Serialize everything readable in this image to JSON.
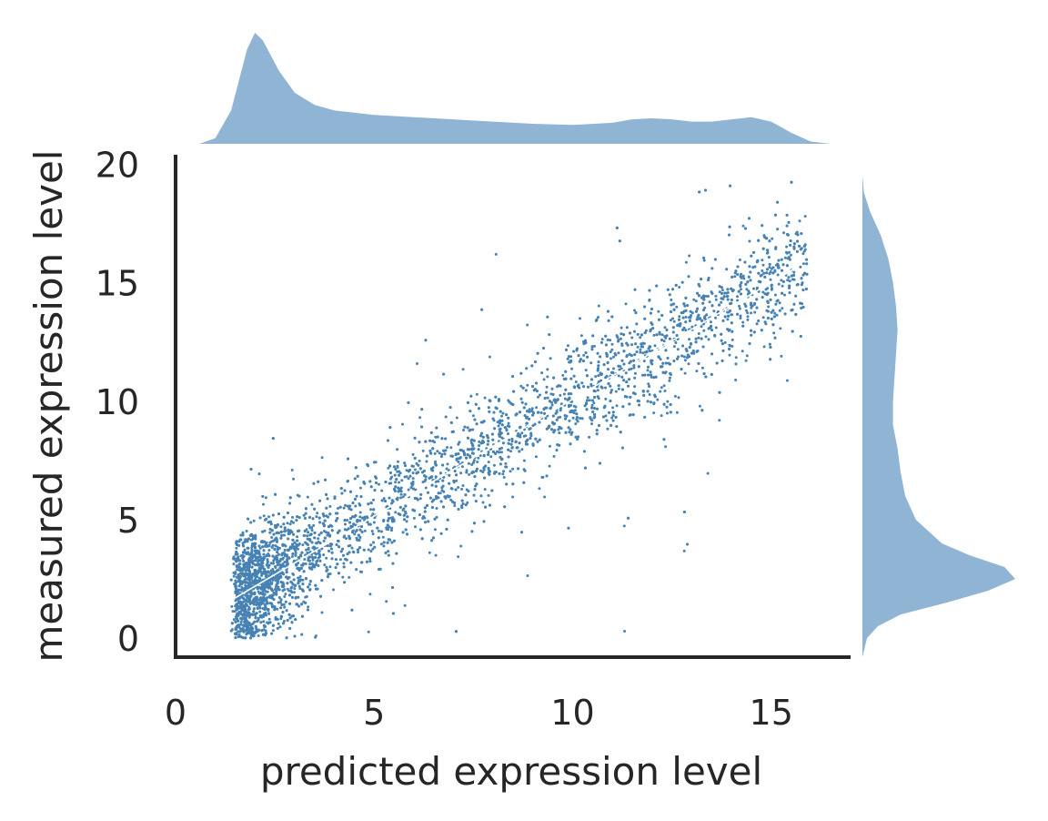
{
  "chart_data": {
    "type": "scatter",
    "title": "",
    "xlabel": "predicted expression level",
    "ylabel": "measured expression level",
    "xlim": [
      0,
      17
    ],
    "ylim": [
      -0.8,
      20.4
    ],
    "xticks": [
      0,
      5,
      10,
      15
    ],
    "yticks": [
      0,
      5,
      10,
      15,
      20
    ],
    "xtick_labels": [
      "0",
      "5",
      "10",
      "15"
    ],
    "ytick_labels": [
      "0",
      "5",
      "10",
      "15",
      "20"
    ],
    "point_color": "#4682b4",
    "marginal_color": "#90b4d4",
    "fit_line_color": "#ffffff",
    "fit_line": {
      "x": [
        1.5,
        15.6
      ],
      "y": [
        1.7,
        15.6
      ]
    },
    "point_count_estimate": 40000,
    "point_cloud": {
      "x_range": [
        1.4,
        15.9
      ],
      "center_line": {
        "slope": 0.985,
        "intercept": 0.2
      },
      "spread_sd": 1.2,
      "outlier_fraction": 0.01
    },
    "x_marginal_density": {
      "x": [
        0.6,
        1.0,
        1.4,
        1.8,
        2.0,
        2.2,
        2.6,
        3.0,
        3.5,
        4.0,
        5.0,
        6.0,
        7.0,
        8.0,
        9.0,
        10.0,
        11.0,
        11.5,
        12.0,
        12.5,
        13.0,
        13.5,
        14.0,
        14.5,
        15.0,
        15.5,
        16.0,
        16.5
      ],
      "density": [
        0.0,
        0.05,
        0.3,
        0.85,
        1.0,
        0.93,
        0.66,
        0.46,
        0.35,
        0.3,
        0.26,
        0.24,
        0.22,
        0.2,
        0.18,
        0.17,
        0.19,
        0.22,
        0.23,
        0.22,
        0.2,
        0.2,
        0.22,
        0.24,
        0.2,
        0.1,
        0.02,
        0.0
      ]
    },
    "y_marginal_density": {
      "y": [
        -0.8,
        0.0,
        0.5,
        1.0,
        1.5,
        2.0,
        2.5,
        3.0,
        3.5,
        4.0,
        5.0,
        6.0,
        7.0,
        8.0,
        9.0,
        10.0,
        11.0,
        12.0,
        13.0,
        14.0,
        15.0,
        16.0,
        17.0,
        18.0,
        18.8,
        19.5
      ],
      "density": [
        0.0,
        0.03,
        0.1,
        0.25,
        0.55,
        0.82,
        1.0,
        0.93,
        0.7,
        0.52,
        0.35,
        0.28,
        0.25,
        0.23,
        0.2,
        0.2,
        0.21,
        0.22,
        0.23,
        0.22,
        0.2,
        0.17,
        0.12,
        0.05,
        0.01,
        0.0
      ]
    }
  }
}
